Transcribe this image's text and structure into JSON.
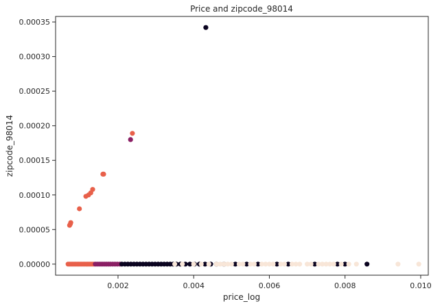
{
  "chart_data": {
    "type": "scatter",
    "title": "Price and zipcode_98014",
    "xlabel": "price_log",
    "ylabel": "zipcode_98014",
    "xlim": [
      0.00035,
      0.0102
    ],
    "ylim": [
      -1.6e-05,
      0.000358
    ],
    "x_ticks": [
      "0.002",
      "0.004",
      "0.006",
      "0.008",
      "0.010"
    ],
    "x_tick_values": [
      0.002,
      0.004,
      0.006,
      0.008,
      0.01
    ],
    "y_ticks": [
      "0.00000",
      "0.00005",
      "0.00010",
      "0.00015",
      "0.00020",
      "0.00025",
      "0.00030",
      "0.00035"
    ],
    "y_tick_values": [
      0,
      5e-05,
      0.0001,
      0.00015,
      0.0002,
      0.00025,
      0.0003,
      0.00035
    ],
    "grid": false,
    "legend": "none",
    "colors": {
      "cluster_orange": "#e8604a",
      "cluster_magenta": "#8a1f64",
      "cluster_dark": "#0b0420",
      "cluster_cream": "#f8e6d8"
    },
    "series": [
      {
        "color_key": "cluster_orange",
        "points": [
          [
            0.00072,
            5.6e-05
          ],
          [
            0.00075,
            6e-05
          ],
          [
            0.00074,
            5.8e-05
          ],
          [
            0.00098,
            8e-05
          ],
          [
            0.00115,
            9.8e-05
          ],
          [
            0.00122,
            0.0001
          ],
          [
            0.00128,
            0.000103
          ],
          [
            0.00133,
            0.000108
          ],
          [
            0.0016,
            0.00013
          ],
          [
            0.00162,
            0.00013
          ],
          [
            0.00238,
            0.000189
          ],
          [
            0.00068,
            0
          ],
          [
            0.00072,
            0
          ],
          [
            0.00076,
            0
          ],
          [
            0.0008,
            0
          ],
          [
            0.00084,
            0
          ],
          [
            0.00088,
            0
          ],
          [
            0.00092,
            0
          ],
          [
            0.00096,
            0
          ],
          [
            0.001,
            0
          ],
          [
            0.00104,
            0
          ],
          [
            0.00108,
            0
          ],
          [
            0.00112,
            0
          ],
          [
            0.00116,
            0
          ],
          [
            0.0012,
            0
          ],
          [
            0.00124,
            0
          ],
          [
            0.00128,
            0
          ],
          [
            0.00132,
            0
          ],
          [
            0.00136,
            0
          ]
        ]
      },
      {
        "color_key": "cluster_magenta",
        "points": [
          [
            0.00233,
            0.00018
          ],
          [
            0.0014,
            0
          ],
          [
            0.00145,
            0
          ],
          [
            0.0015,
            0
          ],
          [
            0.00155,
            0
          ],
          [
            0.0016,
            0
          ],
          [
            0.00165,
            0
          ],
          [
            0.0017,
            0
          ],
          [
            0.00175,
            0
          ],
          [
            0.0018,
            0
          ],
          [
            0.00186,
            0
          ],
          [
            0.00192,
            0
          ],
          [
            0.00198,
            0
          ],
          [
            0.00205,
            0
          ]
        ]
      },
      {
        "color_key": "cluster_dark",
        "points": [
          [
            0.00432,
            0.000342
          ],
          [
            0.0021,
            0
          ],
          [
            0.00218,
            0
          ],
          [
            0.00226,
            0
          ],
          [
            0.00234,
            0
          ],
          [
            0.00242,
            0
          ],
          [
            0.0025,
            0
          ],
          [
            0.00258,
            0
          ],
          [
            0.00266,
            0
          ],
          [
            0.00274,
            0
          ],
          [
            0.00282,
            0
          ],
          [
            0.0029,
            0
          ],
          [
            0.00298,
            0
          ],
          [
            0.00306,
            0
          ],
          [
            0.00314,
            0
          ],
          [
            0.00322,
            0
          ],
          [
            0.0033,
            0
          ],
          [
            0.00338,
            0
          ],
          [
            0.00346,
            0
          ],
          [
            0.00354,
            0
          ],
          [
            0.00365,
            0
          ],
          [
            0.00378,
            0
          ],
          [
            0.0039,
            0
          ],
          [
            0.00402,
            0
          ],
          [
            0.00415,
            0
          ],
          [
            0.0043,
            0
          ],
          [
            0.00445,
            0
          ],
          [
            0.0046,
            0
          ],
          [
            0.0048,
            0
          ],
          [
            0.0051,
            0
          ],
          [
            0.0054,
            0
          ],
          [
            0.0057,
            0
          ],
          [
            0.0062,
            0
          ],
          [
            0.0065,
            0
          ],
          [
            0.0072,
            0
          ],
          [
            0.0078,
            0
          ],
          [
            0.008,
            0
          ],
          [
            0.00858,
            0
          ]
        ]
      },
      {
        "color_key": "cluster_cream",
        "points": [
          [
            0.0035,
            0
          ],
          [
            0.0037,
            0
          ],
          [
            0.004,
            0
          ],
          [
            0.0042,
            0
          ],
          [
            0.0044,
            0
          ],
          [
            0.0046,
            0
          ],
          [
            0.0047,
            0
          ],
          [
            0.0048,
            0
          ],
          [
            0.0049,
            0
          ],
          [
            0.005,
            0
          ],
          [
            0.0052,
            0
          ],
          [
            0.0053,
            0
          ],
          [
            0.0055,
            0
          ],
          [
            0.0056,
            0
          ],
          [
            0.0058,
            0
          ],
          [
            0.0059,
            0
          ],
          [
            0.006,
            0
          ],
          [
            0.0061,
            0
          ],
          [
            0.0063,
            0
          ],
          [
            0.0064,
            0
          ],
          [
            0.0066,
            0
          ],
          [
            0.0067,
            0
          ],
          [
            0.0068,
            0
          ],
          [
            0.007,
            0
          ],
          [
            0.0071,
            0
          ],
          [
            0.0073,
            0
          ],
          [
            0.0074,
            0
          ],
          [
            0.0075,
            0
          ],
          [
            0.0076,
            0
          ],
          [
            0.0077,
            0
          ],
          [
            0.0079,
            0
          ],
          [
            0.0081,
            0
          ],
          [
            0.0083,
            0
          ],
          [
            0.0094,
            0
          ],
          [
            0.00995,
            0
          ]
        ]
      }
    ]
  }
}
